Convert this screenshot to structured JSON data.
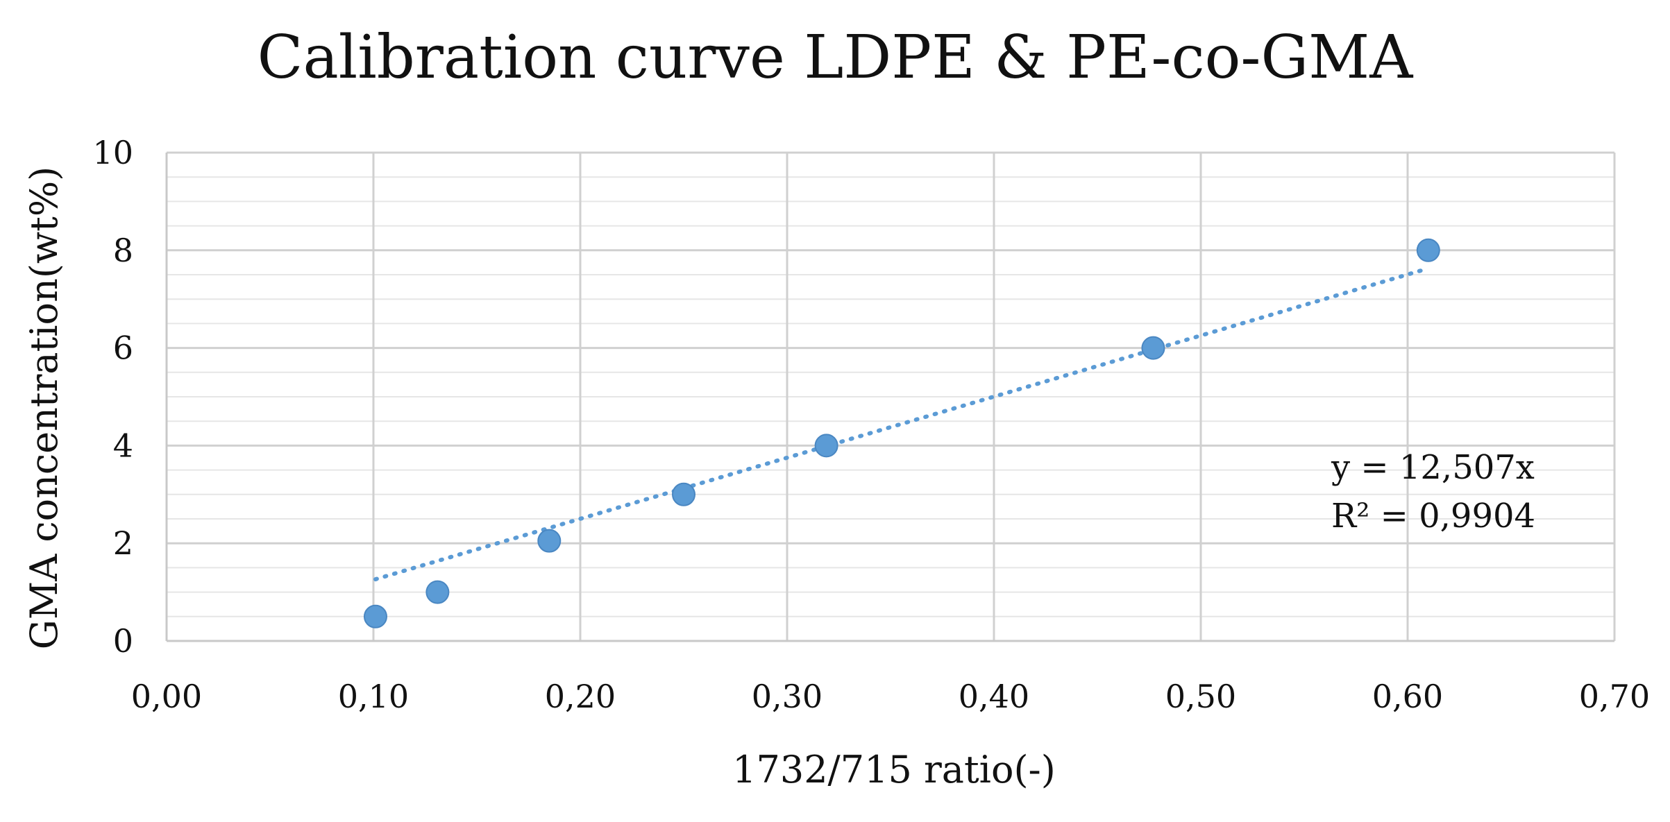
{
  "chart_data": {
    "type": "scatter",
    "title": "Calibration curve LDPE & PE-co-GMA",
    "xlabel": "1732/715 ratio(-)",
    "ylabel": "GMA concentration(wt%)",
    "xlim": [
      0,
      0.7
    ],
    "ylim": [
      0,
      10
    ],
    "x_ticks": [
      0,
      0.1,
      0.2,
      0.3,
      0.4,
      0.5,
      0.6,
      0.7
    ],
    "x_tick_labels": [
      "0,00",
      "0,10",
      "0,20",
      "0,30",
      "0,40",
      "0,50",
      "0,60",
      "0,70"
    ],
    "y_ticks": [
      0,
      2,
      4,
      6,
      8,
      10
    ],
    "y_tick_labels": [
      "0",
      "2",
      "4",
      "6",
      "8",
      "10"
    ],
    "grid": true,
    "series": [
      {
        "name": "GMA concentration",
        "color": "#5b9bd5",
        "x": [
          0.101,
          0.131,
          0.185,
          0.25,
          0.319,
          0.477,
          0.61
        ],
        "y": [
          0.5,
          1.0,
          2.05,
          3.0,
          4.0,
          6.0,
          8.0
        ]
      }
    ],
    "trendline": {
      "type": "linear",
      "style": "dotted",
      "color": "#5b9bd5",
      "slope": 12.507,
      "x_range": [
        0.101,
        0.61
      ],
      "equation": "y = 12,507x",
      "r_squared": "R² = 0,9904"
    }
  }
}
